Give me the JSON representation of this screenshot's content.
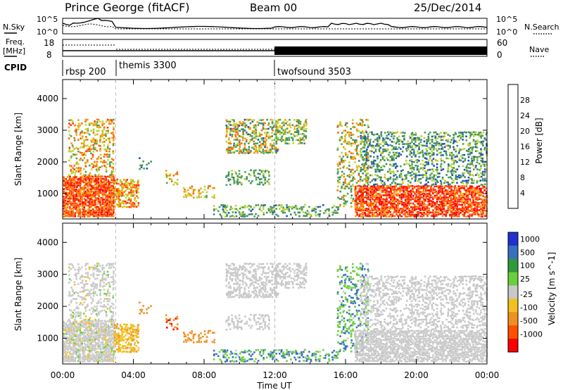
{
  "header": {
    "station": "Prince George (fitACF)",
    "beam": "Beam 00",
    "date": "25/Dec/2014"
  },
  "top_panels": {
    "nsky_label": "N.Sky",
    "nsky_scale_top": "10^5",
    "nsky_scale_bottom": "10^0",
    "nsearch_scale_top": "10^5",
    "nsearch_scale_bottom": "10^0",
    "nsearch_label": "N.Search",
    "freq_label_1": "Freq.",
    "freq_label_2": "[MHz]",
    "freq_ticks": [
      "18",
      "8"
    ],
    "nave_ticks": [
      "60",
      "0"
    ],
    "nave_label": "Nave",
    "cpid_label": "CPID",
    "cpid_segments": [
      {
        "label": "rbsp 200",
        "start_h": 0
      },
      {
        "label": "themis 3300",
        "start_h": 3
      },
      {
        "label": "twofsound 3503",
        "start_h": 12
      }
    ]
  },
  "colors": {
    "power_scale": [
      "#0000ff",
      "#1f4fb8",
      "#3d8a64",
      "#4fa04f",
      "#b8d432",
      "#f0a000",
      "#ff6a00",
      "#ff3000",
      "#ff0000"
    ],
    "velocity_scale": [
      "#2030d0",
      "#3a6fc0",
      "#2f9a3a",
      "#6ad03a",
      "#c8c8c8",
      "#f0c020",
      "#f09020",
      "#ff5000",
      "#ff0000"
    ]
  },
  "chart_data": [
    {
      "type": "heatmap",
      "panel": "power",
      "ylabel": "Slant Range [km]",
      "xlabel": "",
      "x_ticks": [
        "00:00",
        "04:00",
        "08:00",
        "12:00",
        "16:00",
        "20:00",
        "00:00"
      ],
      "y_ticks": [
        "1000",
        "2000",
        "3000",
        "4000"
      ],
      "ylim": [
        200,
        4600
      ],
      "xlim": [
        0,
        24
      ],
      "colorbar_label": "Power [dB]",
      "colorbar_ticks": [
        "28",
        "24",
        "20",
        "16",
        "12",
        "8",
        "4"
      ],
      "colorbar_range": [
        0,
        32
      ]
    },
    {
      "type": "heatmap",
      "panel": "velocity",
      "ylabel": "Slant Range [km]",
      "xlabel": "Time UT",
      "x_ticks": [
        "00:00",
        "04:00",
        "08:00",
        "12:00",
        "16:00",
        "20:00",
        "00:00"
      ],
      "y_ticks": [
        "1000",
        "2000",
        "3000",
        "4000"
      ],
      "ylim": [
        200,
        4600
      ],
      "xlim": [
        0,
        24
      ],
      "colorbar_label": "Velocity [m s^-1]",
      "colorbar_ticks": [
        "1000",
        "500",
        "100",
        "25",
        "-25",
        "-100",
        "-500",
        "-1000"
      ]
    }
  ]
}
